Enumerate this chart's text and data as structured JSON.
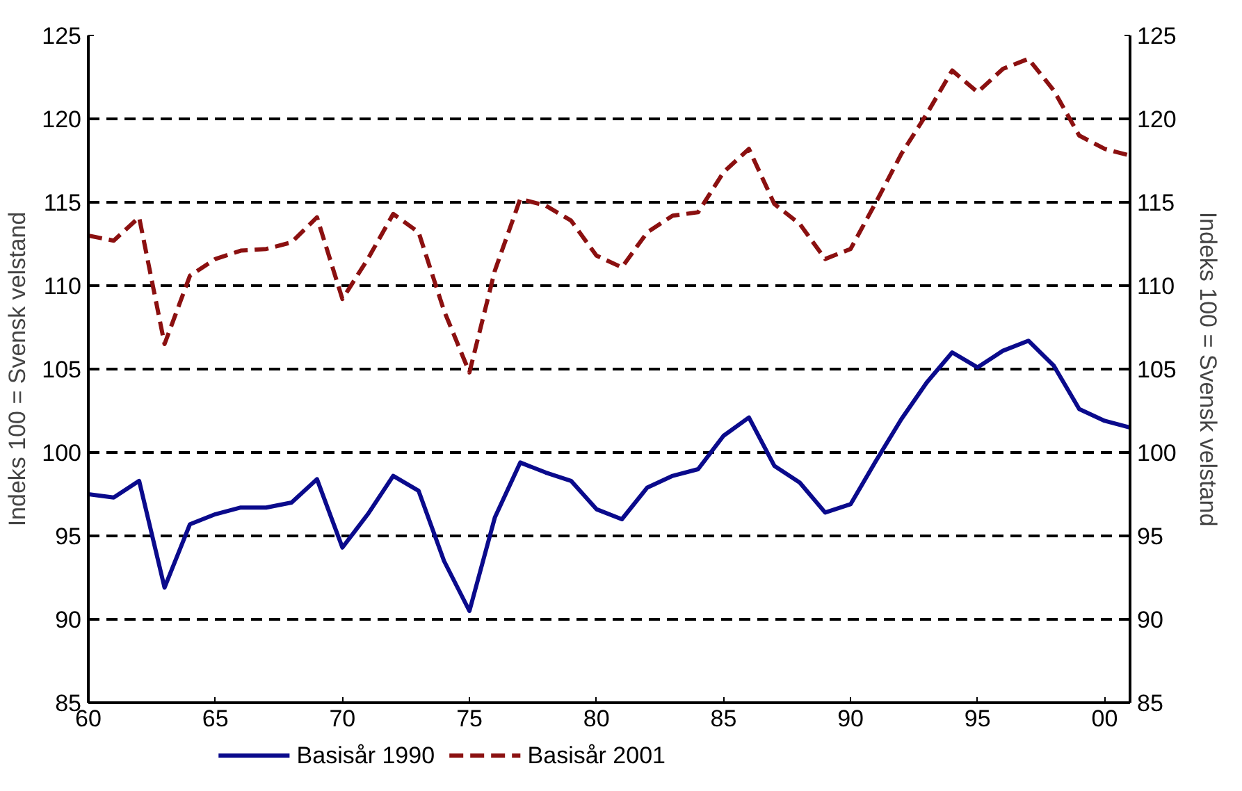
{
  "chart_data": {
    "type": "line",
    "ylabel": "Indeks 100 = Svensk velstand",
    "y2label": "Indeks 100 = Svensk velstand",
    "x": [
      1960,
      1961,
      1962,
      1963,
      1964,
      1965,
      1966,
      1967,
      1968,
      1969,
      1970,
      1971,
      1972,
      1973,
      1974,
      1975,
      1976,
      1977,
      1978,
      1979,
      1980,
      1981,
      1982,
      1983,
      1984,
      1985,
      1986,
      1987,
      1988,
      1989,
      1990,
      1991,
      1992,
      1993,
      1994,
      1995,
      1996,
      1997,
      1998,
      1999,
      2000,
      2001
    ],
    "series": [
      {
        "name": "Basisår 1990",
        "color": "#0a0a8c",
        "line_style": "solid",
        "values": [
          97.5,
          97.3,
          98.3,
          91.9,
          95.7,
          96.3,
          96.7,
          96.7,
          97.0,
          98.4,
          94.3,
          96.3,
          98.6,
          97.7,
          93.5,
          90.5,
          96.1,
          99.4,
          98.8,
          98.3,
          96.6,
          96.0,
          97.9,
          98.6,
          99.0,
          101.0,
          102.1,
          99.2,
          98.2,
          96.4,
          96.9,
          99.5,
          102.0,
          104.2,
          106.0,
          105.1,
          106.1,
          106.7,
          105.2,
          102.6,
          101.9,
          101.5
        ]
      },
      {
        "name": "Basisår 2001",
        "color": "#8b1010",
        "line_style": "dashed",
        "values": [
          113.0,
          112.7,
          114.1,
          106.5,
          110.6,
          111.6,
          112.1,
          112.2,
          112.6,
          114.1,
          109.2,
          111.6,
          114.3,
          113.2,
          108.5,
          104.8,
          110.9,
          115.2,
          114.8,
          113.9,
          111.8,
          111.1,
          113.2,
          114.2,
          114.4,
          116.8,
          118.2,
          114.9,
          113.7,
          111.6,
          112.2,
          115.0,
          117.9,
          120.3,
          122.9,
          121.6,
          123.0,
          123.6,
          121.7,
          119.0,
          118.2,
          117.8
        ]
      }
    ],
    "xlim": [
      1960,
      2001
    ],
    "xticks": [
      {
        "value": 1960,
        "label": "60"
      },
      {
        "value": 1965,
        "label": "65"
      },
      {
        "value": 1970,
        "label": "70"
      },
      {
        "value": 1975,
        "label": "75"
      },
      {
        "value": 1980,
        "label": "80"
      },
      {
        "value": 1985,
        "label": "85"
      },
      {
        "value": 1990,
        "label": "90"
      },
      {
        "value": 1995,
        "label": "95"
      },
      {
        "value": 2000,
        "label": "00"
      }
    ],
    "ylim": [
      85,
      125
    ],
    "yticks": [
      85,
      90,
      95,
      100,
      105,
      110,
      115,
      120,
      125
    ],
    "y2lim": [
      85,
      125
    ],
    "y2ticks": [
      85,
      90,
      95,
      100,
      105,
      110,
      115,
      120,
      125
    ],
    "grid": "y",
    "legend": "bottom"
  }
}
